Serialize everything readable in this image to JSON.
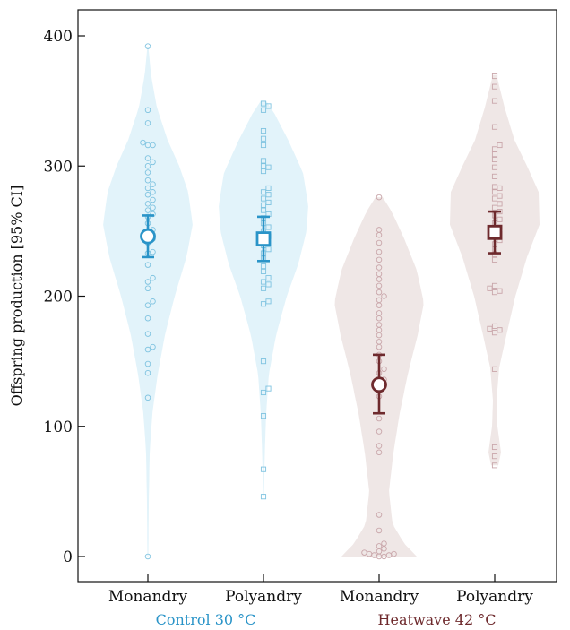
{
  "chart_data": {
    "type": "violin",
    "ylabel": "Offspring production [95% CI]",
    "ylim": [
      -18,
      420
    ],
    "yticks": [
      0,
      100,
      200,
      300,
      400
    ],
    "categories": [
      "Monandry",
      "Polyandry",
      "Monandry",
      "Polyandry"
    ],
    "groups": [
      {
        "label": "Control 30 °C",
        "color": "#2a94c8"
      },
      {
        "label": "Heatwave 42 °C",
        "color": "#6e2a2d"
      }
    ],
    "series": [
      {
        "group": "Control 30 °C",
        "category": "Monandry",
        "marker": "circle",
        "mean": 246,
        "ci_low": 230,
        "ci_high": 262,
        "fill": "#e2f3fa",
        "point_color": "#7fc3e0",
        "line_color": "#2a94c8",
        "density": [
          [
            0,
            0.01
          ],
          [
            40,
            0.02
          ],
          [
            80,
            0.04
          ],
          [
            110,
            0.1
          ],
          [
            140,
            0.22
          ],
          [
            170,
            0.38
          ],
          [
            200,
            0.6
          ],
          [
            230,
            0.86
          ],
          [
            255,
            1.0
          ],
          [
            280,
            0.9
          ],
          [
            300,
            0.7
          ],
          [
            320,
            0.44
          ],
          [
            345,
            0.2
          ],
          [
            370,
            0.07
          ],
          [
            392,
            0.01
          ]
        ],
        "points": [
          0,
          122,
          141,
          148,
          159,
          161,
          171,
          183,
          193,
          196,
          206,
          211,
          214,
          224,
          233,
          234,
          241,
          244,
          248,
          251,
          256,
          261,
          263,
          266,
          268,
          271,
          274,
          278,
          280,
          283,
          286,
          289,
          295,
          300,
          303,
          306,
          316,
          316,
          318,
          333,
          343,
          392
        ]
      },
      {
        "group": "Control 30 °C",
        "category": "Polyandry",
        "marker": "square",
        "mean": 244,
        "ci_low": 227,
        "ci_high": 261,
        "fill": "#e2f3fa",
        "point_color": "#7fc3e0",
        "line_color": "#2a94c8",
        "density": [
          [
            46,
            0.01
          ],
          [
            80,
            0.03
          ],
          [
            110,
            0.06
          ],
          [
            140,
            0.12
          ],
          [
            170,
            0.28
          ],
          [
            200,
            0.52
          ],
          [
            225,
            0.78
          ],
          [
            250,
            0.96
          ],
          [
            270,
            1.0
          ],
          [
            295,
            0.88
          ],
          [
            320,
            0.55
          ],
          [
            340,
            0.25
          ],
          [
            350,
            0.06
          ]
        ],
        "points": [
          46,
          67,
          108,
          126,
          129,
          150,
          194,
          196,
          206,
          209,
          211,
          214,
          219,
          223,
          229,
          233,
          236,
          239,
          243,
          246,
          250,
          253,
          256,
          260,
          263,
          266,
          270,
          272,
          275,
          278,
          280,
          283,
          296,
          299,
          300,
          304,
          316,
          321,
          327,
          343,
          348,
          346
        ]
      },
      {
        "group": "Heatwave 42 °C",
        "category": "Monandry",
        "marker": "circle",
        "mean": 132,
        "ci_low": 110,
        "ci_high": 155,
        "fill": "#efe7e6",
        "point_color": "#c9a6aa",
        "line_color": "#6e2a2d",
        "density": [
          [
            0,
            0.84
          ],
          [
            10,
            0.56
          ],
          [
            25,
            0.3
          ],
          [
            50,
            0.22
          ],
          [
            80,
            0.32
          ],
          [
            110,
            0.46
          ],
          [
            140,
            0.64
          ],
          [
            170,
            0.86
          ],
          [
            195,
            1.0
          ],
          [
            220,
            0.84
          ],
          [
            245,
            0.55
          ],
          [
            265,
            0.28
          ],
          [
            276,
            0.08
          ]
        ],
        "points": [
          0,
          0,
          1,
          1,
          2,
          2,
          3,
          4,
          6,
          8,
          10,
          20,
          32,
          80,
          85,
          96,
          106,
          123,
          133,
          136,
          141,
          144,
          150,
          155,
          161,
          165,
          170,
          174,
          178,
          183,
          187,
          193,
          197,
          200,
          203,
          208,
          213,
          217,
          222,
          228,
          234,
          241,
          247,
          251,
          276
        ]
      },
      {
        "group": "Heatwave 42 °C",
        "category": "Polyandry",
        "marker": "square",
        "mean": 249,
        "ci_low": 233,
        "ci_high": 265,
        "fill": "#efe7e6",
        "point_color": "#c9a6aa",
        "line_color": "#6e2a2d",
        "density": [
          [
            70,
            0.08
          ],
          [
            80,
            0.14
          ],
          [
            100,
            0.06
          ],
          [
            120,
            0.04
          ],
          [
            145,
            0.1
          ],
          [
            170,
            0.26
          ],
          [
            200,
            0.46
          ],
          [
            230,
            0.72
          ],
          [
            255,
            1.0
          ],
          [
            280,
            0.98
          ],
          [
            300,
            0.72
          ],
          [
            320,
            0.44
          ],
          [
            345,
            0.22
          ],
          [
            370,
            0.04
          ]
        ],
        "points": [
          70,
          77,
          84,
          144,
          172,
          174,
          175,
          177,
          203,
          204,
          206,
          208,
          228,
          232,
          236,
          240,
          243,
          246,
          248,
          250,
          253,
          256,
          259,
          262,
          265,
          268,
          271,
          275,
          277,
          280,
          283,
          284,
          292,
          299,
          305,
          309,
          313,
          316,
          330,
          350,
          361,
          369
        ]
      }
    ]
  }
}
